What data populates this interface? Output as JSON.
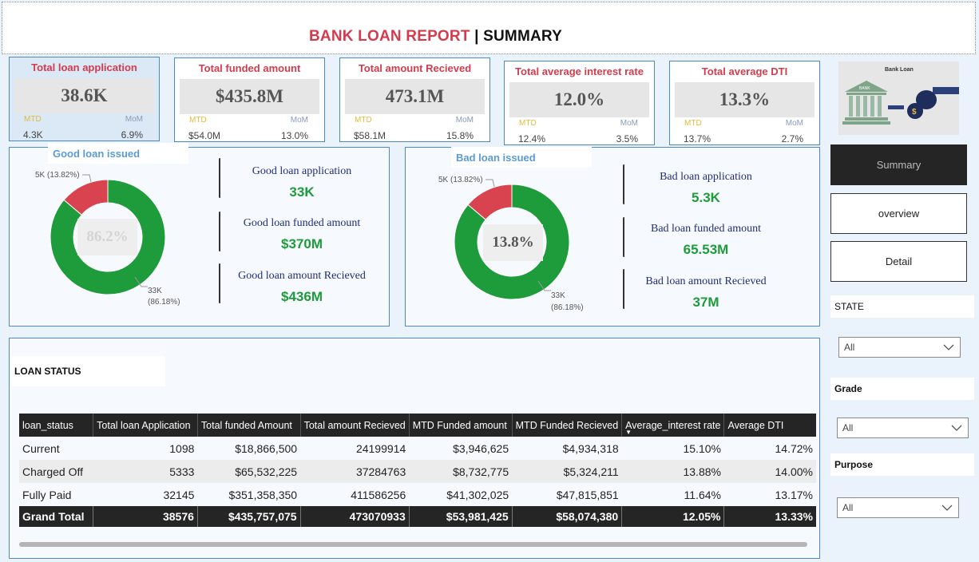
{
  "header": {
    "title_red": "BANK LOAN REPORT",
    "separator": " | ",
    "title_black": "SUMMARY"
  },
  "kpis": [
    {
      "label": "Total loan application",
      "value": "38.6K",
      "mtd_label": "MTD",
      "mom_label": "MoM",
      "mtd": "4.3K",
      "mom": "6.9%"
    },
    {
      "label": "Total funded amount",
      "value": "$435.8M",
      "mtd_label": "MTD",
      "mom_label": "MoM",
      "mtd": "$54.0M",
      "mom": "13.0%"
    },
    {
      "label": "Total amount Recieved",
      "value": "473.1M",
      "mtd_label": "MTD",
      "mom_label": "MoM",
      "mtd": "$58.1M",
      "mom": "15.8%"
    },
    {
      "label": "Total average interest rate",
      "value": "12.0%",
      "mtd_label": "MTD",
      "mom_label": "MoM",
      "mtd": "12.4%",
      "mom": "3.5%"
    },
    {
      "label": "Total average DTI",
      "value": "13.3%",
      "mtd_label": "MTD",
      "mom_label": "MoM",
      "mtd": "13.7%",
      "mom": "2.7%"
    }
  ],
  "good_loan": {
    "title": "Good loan issued",
    "center": "86.2%",
    "slice_small_label": "5K (13.82%)",
    "slice_large_label_1": "33K",
    "slice_large_label_2": "(86.18%)",
    "metrics": [
      {
        "label": "Good loan application",
        "value": "33K"
      },
      {
        "label": "Good loan funded amount",
        "value": "$370M"
      },
      {
        "label": "Good loan amount Recieved",
        "value": "$436M"
      }
    ]
  },
  "bad_loan": {
    "title": "Bad loan issued",
    "center": "13.8%",
    "slice_small_label": "5K (13.82%)",
    "slice_large_label_1": "33K",
    "slice_large_label_2": "(86.18%)",
    "metrics": [
      {
        "label": "Bad loan application",
        "value": "5.3K"
      },
      {
        "label": "Bad loan funded amount",
        "value": "65.53M"
      },
      {
        "label": "Bad loan amount Recieved",
        "value": "37M"
      }
    ]
  },
  "chart_data": [
    {
      "type": "pie",
      "title": "Good loan issued",
      "categories": [
        "Good loan",
        "Bad loan"
      ],
      "values": [
        86.18,
        13.82
      ],
      "counts": [
        "33K",
        "5K"
      ],
      "colors": [
        "#1e9b3a",
        "#d9434f"
      ]
    },
    {
      "type": "pie",
      "title": "Bad loan issued",
      "categories": [
        "Good loan",
        "Bad loan"
      ],
      "values": [
        86.18,
        13.82
      ],
      "counts": [
        "33K",
        "5K"
      ],
      "colors": [
        "#1e9b3a",
        "#d9434f"
      ]
    }
  ],
  "logo": {
    "caption": "Bank Loan",
    "building_text": "BANK"
  },
  "nav": {
    "summary": "Summary",
    "overview": "overview",
    "detail": "Detail"
  },
  "filters": {
    "state": {
      "label": "STATE",
      "value": "All"
    },
    "grade": {
      "label": "Grade",
      "value": "All"
    },
    "purpose": {
      "label": "Purpose",
      "value": "All"
    }
  },
  "loan_status": {
    "title": "LOAN STATUS",
    "columns": [
      "loan_status",
      "Total loan Application",
      "Total funded Amount",
      "Total amount Recieved",
      "MTD Funded amount",
      "MTD Funded Recieved",
      "Average_interest rate",
      "Average DTI"
    ],
    "rows": [
      [
        "Current",
        "1098",
        "$18,866,500",
        "24199914",
        "$3,946,625",
        "$4,934,318",
        "15.10%",
        "14.72%"
      ],
      [
        "Charged Off",
        "5333",
        "$65,532,225",
        "37284763",
        "$8,732,775",
        "$5,324,211",
        "13.88%",
        "14.00%"
      ],
      [
        "Fully Paid",
        "32145",
        "$351,358,350",
        "411586256",
        "$41,302,025",
        "$47,815,851",
        "11.64%",
        "13.17%"
      ]
    ],
    "total": [
      "Grand Total",
      "38576",
      "$435,757,075",
      "473070933",
      "$53,981,425",
      "$58,074,380",
      "12.05%",
      "13.33%"
    ]
  },
  "colors": {
    "accent_red": "#d43c4e",
    "good_green": "#1e9b3a",
    "bad_red": "#d9434f",
    "border_blue": "#4b89c9",
    "dark": "#252525"
  },
  "icons": {
    "chevron": "chevron-down-icon",
    "sort": "sort-down-icon"
  }
}
